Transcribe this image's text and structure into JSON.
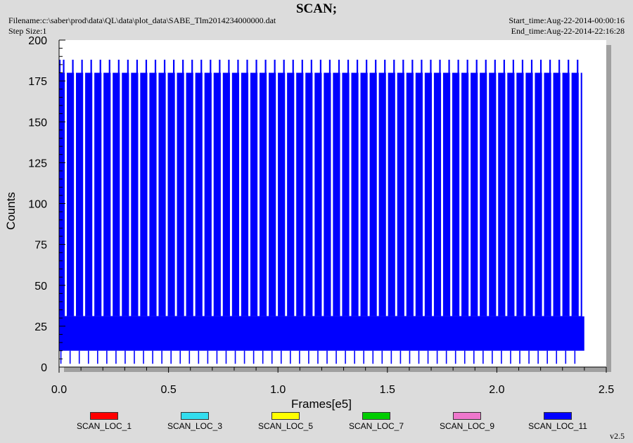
{
  "header": {
    "title": "SCAN;",
    "filename": "Filename:c:\\saber\\prod\\data\\QL\\data\\plot_data\\SABE_Tlm2014234000000.dat",
    "step_size": "Step Size:1",
    "start_time": "Start_time:Aug-22-2014-00:00:16",
    "end_time": "End_time:Aug-22-2014-22:16:28"
  },
  "footer": {
    "version": "v2.5"
  },
  "colors": {
    "background": "#dcdcdc",
    "plot_area": "#ffffff",
    "shadow": "#a0a0a0",
    "dominant_series": "#0000ff"
  },
  "chart_data": {
    "type": "line",
    "title": "SCAN;",
    "xlabel": "Frames[e5]",
    "ylabel": "Counts",
    "xlim": [
      0,
      2.5
    ],
    "ylim": [
      0,
      200
    ],
    "x_ticks": [
      "0.0",
      "0.5",
      "1.0",
      "1.5",
      "2.0",
      "2.5"
    ],
    "y_ticks": [
      "0",
      "25",
      "50",
      "75",
      "100",
      "125",
      "150",
      "175",
      "200"
    ],
    "grid": false,
    "legend_position": "bottom",
    "dense_signal": {
      "x_range": [
        0.0,
        2.39
      ],
      "low_band": [
        10,
        31
      ],
      "high_level": 180,
      "spike_peak": 188,
      "dip_min": 2,
      "num_spikes": 57
    },
    "series": [
      {
        "name": "SCAN_LOC_1",
        "color": "#ff0000"
      },
      {
        "name": "SCAN_LOC_3",
        "color": "#33ddee"
      },
      {
        "name": "SCAN_LOC_5",
        "color": "#ffff00"
      },
      {
        "name": "SCAN_LOC_7",
        "color": "#00cc00"
      },
      {
        "name": "SCAN_LOC_9",
        "color": "#ee77cc"
      },
      {
        "name": "SCAN_LOC_11",
        "color": "#0000ff"
      }
    ]
  }
}
